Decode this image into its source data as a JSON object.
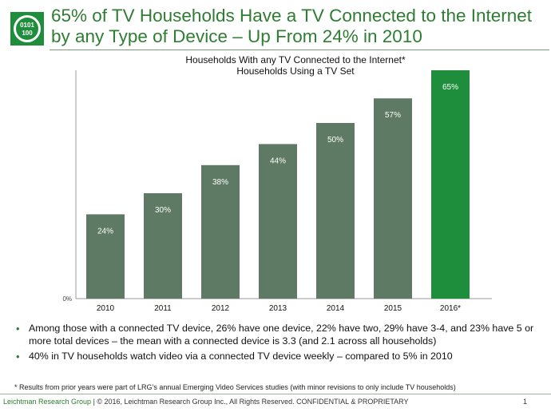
{
  "slide": {
    "title": "65% of TV Households Have a TV Connected to the Internet by any Type of Device – Up From 24% in 2010",
    "logo_text": "0101 100",
    "bullets": [
      "Among those with a connected TV device, 26% have one device, 22% have two, 29% have 3-4, and 23% have 5 or more total devices – the mean with a connected device is 3.3 (and 2.1 across all households)",
      "40% in TV households watch video via a connected TV device weekly – compared to 5% in 2010"
    ],
    "bullet_glyph": "•",
    "footnote": "*  Results from prior years were part of LRG’s annual Emerging Video Services studies (with minor revisions to only include TV households)",
    "footer_brand": "Leichtman Research Group",
    "footer_rest": " | © 2016, Leichtman Research Group Inc., All Rights Reserved. CONFIDENTIAL & PROPRIETARY",
    "page_number": "1"
  },
  "colors": {
    "title": "#2e7d32",
    "bar": "#5f7a64",
    "bar_highlight": "#1f8e3c",
    "bar_label": "#ffffff",
    "axis": "#9a9a9a"
  },
  "chart_data": {
    "type": "bar",
    "title": "Households With any TV Connected to the Internet*",
    "subtitle": "Households Using a TV Set",
    "categories": [
      "2010",
      "2011",
      "2012",
      "2013",
      "2014",
      "2015",
      "2016*"
    ],
    "values": [
      24,
      30,
      38,
      44,
      50,
      57,
      65
    ],
    "data_labels": [
      "24%",
      "30%",
      "38%",
      "44%",
      "50%",
      "57%",
      "65%"
    ],
    "highlight_index": 6,
    "y_tick_label": "0%",
    "ylim": [
      0,
      65
    ],
    "grid": false,
    "legend": "none"
  }
}
